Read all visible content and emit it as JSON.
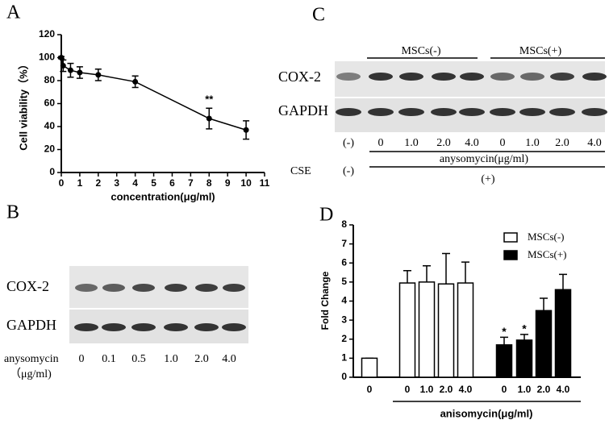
{
  "chart_data": [
    {
      "type": "line",
      "panel": "A",
      "xlabel": "concentration(μg/ml)",
      "ylabel": "Cell viability（%）",
      "x": [
        0,
        0.1,
        0.5,
        1,
        2,
        4,
        8,
        10
      ],
      "values": [
        100,
        93,
        89,
        87,
        85,
        79,
        47,
        37
      ],
      "errors": [
        1,
        5,
        6,
        5,
        5,
        5,
        9,
        8
      ],
      "xlim": [
        0,
        11
      ],
      "xticks": [
        0,
        1,
        2,
        3,
        4,
        5,
        6,
        7,
        8,
        9,
        10,
        11
      ],
      "ylim": [
        0,
        120
      ],
      "yticks": [
        0,
        20,
        40,
        60,
        80,
        100,
        120
      ],
      "annotations": [
        {
          "text": "**",
          "x": 8
        }
      ],
      "color": "#000000"
    },
    {
      "type": "bar",
      "panel": "D",
      "xlabel": "anisomycin(μg/ml)",
      "ylabel": "Fold Change",
      "categories": [
        "0",
        "0",
        "1.0",
        "2.0",
        "4.0",
        "0",
        "1.0",
        "2.0",
        "4.0"
      ],
      "series": [
        {
          "name": "MSCs(-)",
          "color": "#ffffff",
          "values": [
            1,
            4.95,
            5.0,
            4.9,
            4.95,
            null,
            null,
            null,
            null
          ],
          "errors": [
            0,
            0.65,
            0.85,
            1.6,
            1.1,
            null,
            null,
            null,
            null
          ]
        },
        {
          "name": "MSCs(+)",
          "color": "#000000",
          "values": [
            null,
            null,
            null,
            null,
            null,
            1.7,
            1.95,
            3.5,
            4.6
          ],
          "errors": [
            null,
            null,
            null,
            null,
            null,
            0.4,
            0.3,
            0.65,
            0.8
          ]
        }
      ],
      "ylim": [
        0,
        8
      ],
      "yticks": [
        0,
        1,
        2,
        3,
        4,
        5,
        6,
        7,
        8
      ],
      "annotations": [
        {
          "text": "*",
          "series": 1,
          "index": 5
        },
        {
          "text": "*",
          "series": 1,
          "index": 6
        }
      ]
    }
  ],
  "blot_b": {
    "panel": "B",
    "rows": [
      "COX-2",
      "GAPDH"
    ],
    "treatment": "anysomycin",
    "unit": "（μg/ml)",
    "lanes": [
      "0",
      "0.1",
      "0.5",
      "1.0",
      "2.0",
      "4.0"
    ]
  },
  "blot_c": {
    "panel": "C",
    "rows": [
      "COX-2",
      "GAPDH"
    ],
    "groups": [
      "MSCs(-)",
      "MSCs(+)"
    ],
    "lanes": [
      "(-)",
      "0",
      "1.0",
      "2.0",
      "4.0",
      "0",
      "1.0",
      "2.0",
      "4.0"
    ],
    "treatment": "anysomycin(μg/ml)",
    "cse": "CSE",
    "cse_neg": "(-)",
    "cse_pos": "(+)"
  }
}
